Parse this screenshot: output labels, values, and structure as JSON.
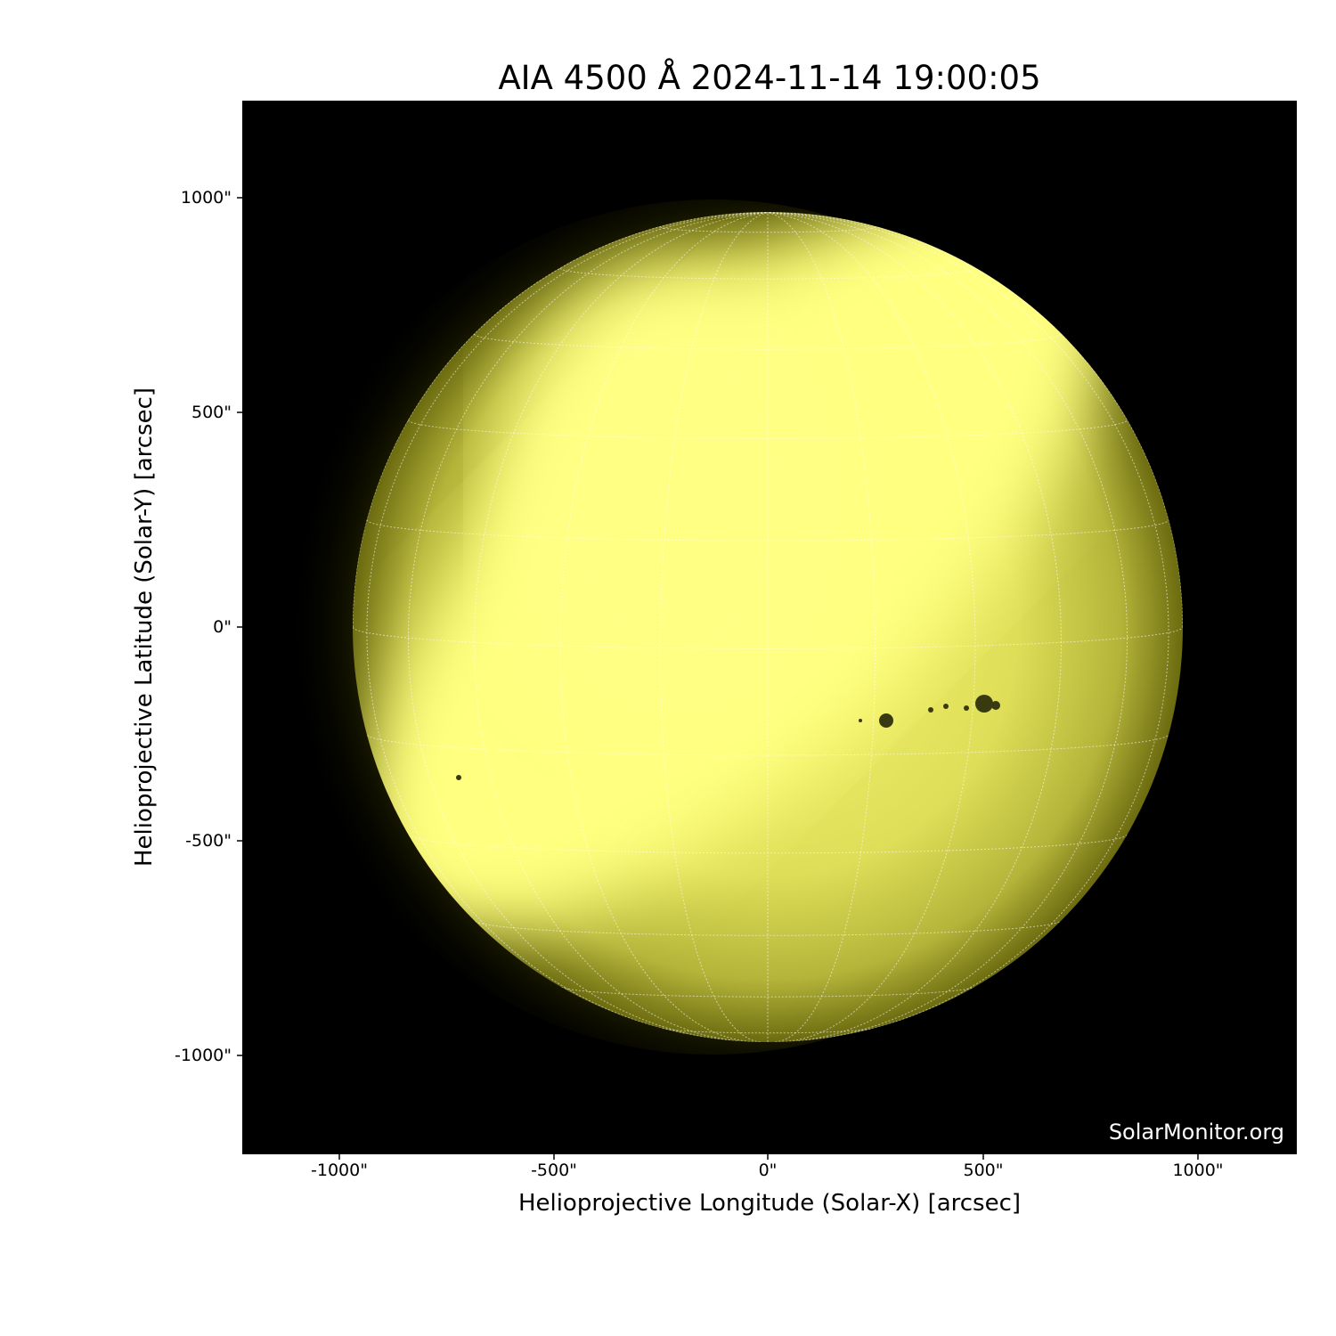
{
  "title": "AIA 4500 Å 2024-11-14 19:00:05",
  "xlabel": "Helioprojective Longitude (Solar-X) [arcsec]",
  "ylabel": "Helioprojective Latitude (Solar-Y) [arcsec]",
  "x_ticks": [
    "-1000\"",
    "-500\"",
    "0\"",
    "500\"",
    "1000\""
  ],
  "y_ticks": [
    "1000\"",
    "500\"",
    "0\"",
    "-500\"",
    "-1000\""
  ],
  "watermark": "SolarMonitor.org",
  "colors": {
    "sun": "#ffff80",
    "limb": "#6b6b00",
    "background": "#000000",
    "grid": "#ffffff"
  },
  "image": {
    "instrument": "AIA",
    "wavelength": "4500 Å",
    "grid": "heliographic, dotted, 15° spacing"
  }
}
